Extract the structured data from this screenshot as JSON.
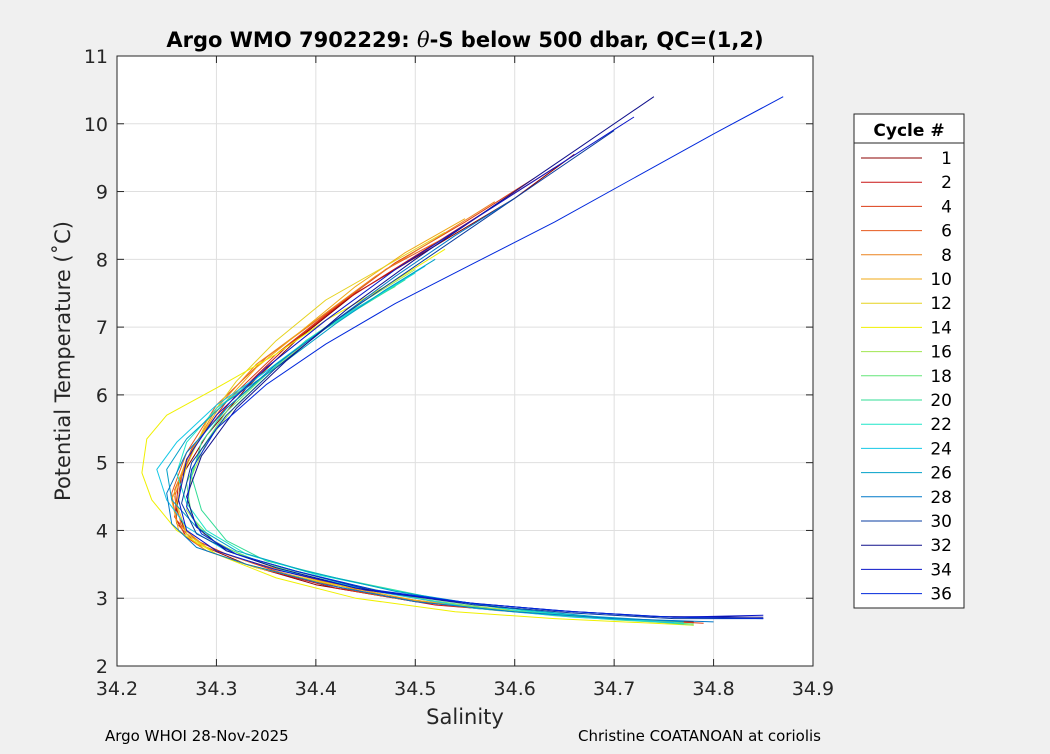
{
  "chart_data": {
    "type": "line",
    "title": "Argo WMO 7902229: θ-S below 500 dbar,  QC=(1,2)",
    "title_prefix": "Argo WMO 7902229: ",
    "title_theta": "θ",
    "title_suffix": "-S below 500 dbar,  QC=(1,2)",
    "xlabel": "Salinity",
    "ylabel": "Potential Temperature (˚C)",
    "xlim": [
      34.2,
      34.9
    ],
    "ylim": [
      2,
      11
    ],
    "xticks": [
      34.2,
      34.3,
      34.4,
      34.5,
      34.6,
      34.7,
      34.8,
      34.9
    ],
    "xtick_labels": [
      "34.2",
      "34.3",
      "34.4",
      "34.5",
      "34.6",
      "34.7",
      "34.8",
      "34.9"
    ],
    "yticks": [
      2,
      3,
      4,
      5,
      6,
      7,
      8,
      9,
      10,
      11
    ],
    "ytick_labels": [
      "2",
      "3",
      "4",
      "5",
      "6",
      "7",
      "8",
      "9",
      "10",
      "11"
    ],
    "grid": true,
    "legend": {
      "title": "Cycle #",
      "placement": "right-outside",
      "entries": [
        {
          "label": "1",
          "color": "#8b0000"
        },
        {
          "label": "2",
          "color": "#c81414"
        },
        {
          "label": "4",
          "color": "#dc3c14"
        },
        {
          "label": "6",
          "color": "#e65a1e"
        },
        {
          "label": "8",
          "color": "#ec821e"
        },
        {
          "label": "10",
          "color": "#f0aa14"
        },
        {
          "label": "12",
          "color": "#e6d21e"
        },
        {
          "label": "14",
          "color": "#f0f000"
        },
        {
          "label": "16",
          "color": "#a0e650"
        },
        {
          "label": "18",
          "color": "#64e678"
        },
        {
          "label": "20",
          "color": "#32dc96"
        },
        {
          "label": "22",
          "color": "#1ee6c8"
        },
        {
          "label": "24",
          "color": "#14c8e6"
        },
        {
          "label": "26",
          "color": "#00a0c8"
        },
        {
          "label": "28",
          "color": "#0078c8"
        },
        {
          "label": "30",
          "color": "#0a3ca0"
        },
        {
          "label": "32",
          "color": "#10108c"
        },
        {
          "label": "34",
          "color": "#0a14c8"
        },
        {
          "label": "36",
          "color": "#0028dc"
        }
      ]
    },
    "series": [
      {
        "name": "1",
        "color": "#8b0000",
        "salinity": [
          34.66,
          34.6,
          34.52,
          34.44,
          34.38,
          34.33,
          34.29,
          34.265,
          34.26,
          34.27,
          34.29,
          34.33,
          34.4,
          34.5,
          34.6,
          34.7,
          34.78
        ],
        "theta": [
          9.55,
          8.9,
          8.2,
          7.5,
          6.8,
          6.1,
          5.4,
          4.8,
          4.3,
          3.95,
          3.75,
          3.5,
          3.2,
          2.95,
          2.8,
          2.7,
          2.65
        ]
      },
      {
        "name": "2",
        "color": "#c81414",
        "salinity": [
          34.64,
          34.57,
          34.5,
          34.43,
          34.37,
          34.32,
          34.28,
          34.262,
          34.258,
          34.27,
          34.29,
          34.34,
          34.42,
          34.52,
          34.62,
          34.72,
          34.78
        ],
        "theta": [
          9.35,
          8.7,
          8.05,
          7.4,
          6.7,
          6.0,
          5.3,
          4.7,
          4.2,
          3.9,
          3.7,
          3.45,
          3.15,
          2.9,
          2.78,
          2.68,
          2.64
        ]
      },
      {
        "name": "4",
        "color": "#dc3c14",
        "salinity": [
          34.62,
          34.55,
          34.48,
          34.42,
          34.36,
          34.31,
          34.275,
          34.258,
          34.26,
          34.28,
          34.31,
          34.36,
          34.44,
          34.54,
          34.64,
          34.74,
          34.79
        ],
        "theta": [
          9.2,
          8.55,
          7.95,
          7.3,
          6.6,
          5.9,
          5.2,
          4.6,
          4.15,
          3.85,
          3.65,
          3.4,
          3.1,
          2.88,
          2.75,
          2.67,
          2.63
        ]
      },
      {
        "name": "6",
        "color": "#e65a1e",
        "salinity": [
          34.6,
          34.54,
          34.47,
          34.41,
          34.35,
          34.3,
          34.27,
          34.255,
          34.26,
          34.28,
          34.32,
          34.38,
          34.46,
          34.56,
          34.66,
          34.76
        ],
        "theta": [
          9.0,
          8.4,
          7.85,
          7.2,
          6.55,
          5.85,
          5.15,
          4.55,
          4.1,
          3.8,
          3.6,
          3.35,
          3.05,
          2.85,
          2.73,
          2.65
        ]
      },
      {
        "name": "8",
        "color": "#ec821e",
        "salinity": [
          34.58,
          34.52,
          34.46,
          34.4,
          34.34,
          34.3,
          34.272,
          34.258,
          34.265,
          34.29,
          34.33,
          34.4,
          34.48,
          34.58,
          34.68,
          34.76
        ],
        "theta": [
          8.85,
          8.3,
          7.75,
          7.1,
          6.45,
          5.8,
          5.1,
          4.5,
          4.05,
          3.75,
          3.55,
          3.28,
          3.0,
          2.82,
          2.72,
          2.65
        ]
      },
      {
        "name": "10",
        "color": "#f0aa14",
        "salinity": [
          34.55,
          34.49,
          34.44,
          34.39,
          34.34,
          34.3,
          34.27,
          34.255,
          34.262,
          34.29,
          34.33,
          34.4,
          34.5,
          34.6,
          34.7,
          34.77
        ],
        "theta": [
          8.6,
          8.1,
          7.6,
          7.0,
          6.4,
          5.75,
          5.05,
          4.45,
          4.0,
          3.7,
          3.5,
          3.25,
          2.97,
          2.8,
          2.7,
          2.64
        ]
      },
      {
        "name": "12",
        "color": "#e6d21e",
        "salinity": [
          34.53,
          34.47,
          34.41,
          34.36,
          34.32,
          34.29,
          34.27,
          34.26,
          34.27,
          34.3,
          34.34,
          34.42,
          34.52,
          34.62,
          34.72
        ],
        "theta": [
          8.4,
          7.9,
          7.4,
          6.8,
          6.2,
          5.6,
          4.95,
          4.4,
          3.95,
          3.65,
          3.45,
          3.2,
          2.95,
          2.78,
          2.68
        ]
      },
      {
        "name": "14",
        "color": "#f0f000",
        "salinity": [
          34.53,
          34.47,
          34.41,
          34.36,
          34.3,
          34.25,
          34.23,
          34.225,
          34.235,
          34.26,
          34.3,
          34.36,
          34.44,
          34.54,
          34.64,
          34.74,
          34.78
        ],
        "theta": [
          8.15,
          7.6,
          7.1,
          6.6,
          6.1,
          5.7,
          5.35,
          4.85,
          4.45,
          4.0,
          3.65,
          3.3,
          3.0,
          2.8,
          2.7,
          2.63,
          2.6
        ]
      },
      {
        "name": "16",
        "color": "#a0e650",
        "salinity": [
          34.5,
          34.45,
          34.4,
          34.36,
          34.32,
          34.29,
          34.275,
          34.27,
          34.29,
          34.33,
          34.38,
          34.45,
          34.54,
          34.64,
          34.74,
          34.78
        ],
        "theta": [
          7.85,
          7.4,
          6.9,
          6.4,
          5.85,
          5.3,
          4.8,
          4.3,
          3.9,
          3.6,
          3.4,
          3.15,
          2.9,
          2.74,
          2.65,
          2.6
        ]
      },
      {
        "name": "18",
        "color": "#64e678",
        "salinity": [
          34.48,
          34.43,
          34.39,
          34.35,
          34.31,
          34.285,
          34.27,
          34.275,
          34.3,
          34.35,
          34.42,
          34.5,
          34.6,
          34.7,
          34.78
        ],
        "theta": [
          7.6,
          7.2,
          6.8,
          6.3,
          5.75,
          5.2,
          4.7,
          4.2,
          3.8,
          3.5,
          3.25,
          3.0,
          2.8,
          2.68,
          2.62
        ]
      },
      {
        "name": "20",
        "color": "#32dc96",
        "salinity": [
          34.49,
          34.44,
          34.39,
          34.35,
          34.31,
          34.285,
          34.275,
          34.285,
          34.31,
          34.35,
          34.42,
          34.52,
          34.62,
          34.72,
          34.77
        ],
        "theta": [
          7.7,
          7.25,
          6.8,
          6.3,
          5.8,
          5.3,
          4.8,
          4.3,
          3.85,
          3.55,
          3.3,
          3.0,
          2.8,
          2.68,
          2.62
        ]
      },
      {
        "name": "22",
        "color": "#1ee6c8",
        "salinity": [
          34.5,
          34.45,
          34.4,
          34.35,
          34.3,
          34.27,
          34.26,
          34.27,
          34.29,
          34.33,
          34.4,
          34.5,
          34.6,
          34.7,
          34.77
        ],
        "theta": [
          7.8,
          7.35,
          6.9,
          6.35,
          5.8,
          5.3,
          4.85,
          4.4,
          4.0,
          3.65,
          3.35,
          3.05,
          2.82,
          2.7,
          2.63
        ]
      },
      {
        "name": "24",
        "color": "#14c8e6",
        "salinity": [
          34.51,
          34.46,
          34.41,
          34.36,
          34.3,
          34.26,
          34.24,
          34.25,
          34.27,
          34.31,
          34.37,
          34.46,
          34.56,
          34.66,
          34.76
        ],
        "theta": [
          7.9,
          7.45,
          7.0,
          6.45,
          5.85,
          5.3,
          4.9,
          4.45,
          4.05,
          3.7,
          3.4,
          3.1,
          2.85,
          2.72,
          2.64
        ]
      },
      {
        "name": "26",
        "color": "#00a0c8",
        "salinity": [
          34.52,
          34.47,
          34.42,
          34.37,
          34.31,
          34.27,
          34.25,
          34.255,
          34.28,
          34.32,
          34.39,
          34.48,
          34.58,
          34.68,
          34.77
        ],
        "theta": [
          8.0,
          7.55,
          7.05,
          6.5,
          5.9,
          5.35,
          4.9,
          4.45,
          4.05,
          3.7,
          3.4,
          3.1,
          2.87,
          2.73,
          2.65
        ]
      },
      {
        "name": "28",
        "color": "#0078c8",
        "salinity": [
          34.6,
          34.54,
          34.48,
          34.42,
          34.36,
          34.31,
          34.27,
          34.25,
          34.255,
          34.28,
          34.33,
          34.41,
          34.5,
          34.6,
          34.7,
          34.8
        ],
        "theta": [
          8.9,
          8.35,
          7.75,
          7.1,
          6.45,
          5.8,
          5.15,
          4.55,
          4.1,
          3.75,
          3.5,
          3.2,
          2.95,
          2.8,
          2.7,
          2.65
        ]
      },
      {
        "name": "30",
        "color": "#0a3ca0",
        "salinity": [
          34.7,
          34.63,
          34.56,
          34.49,
          34.42,
          34.36,
          34.31,
          34.275,
          34.265,
          34.28,
          34.32,
          34.38,
          34.46,
          34.56,
          34.66,
          34.76,
          34.85
        ],
        "theta": [
          9.9,
          9.2,
          8.5,
          7.8,
          7.1,
          6.4,
          5.7,
          5.0,
          4.4,
          3.95,
          3.65,
          3.4,
          3.1,
          2.9,
          2.78,
          2.7,
          2.7
        ]
      },
      {
        "name": "32",
        "color": "#10108c",
        "salinity": [
          34.74,
          34.66,
          34.58,
          34.5,
          34.43,
          34.37,
          34.32,
          34.285,
          34.27,
          34.28,
          34.31,
          34.36,
          34.44,
          34.54,
          34.64,
          34.74,
          34.85
        ],
        "theta": [
          10.4,
          9.6,
          8.8,
          8.0,
          7.25,
          6.5,
          5.8,
          5.1,
          4.5,
          4.05,
          3.7,
          3.45,
          3.15,
          2.95,
          2.82,
          2.73,
          2.72
        ]
      },
      {
        "name": "34",
        "color": "#0a14c8",
        "salinity": [
          34.72,
          34.64,
          34.56,
          34.48,
          34.41,
          34.35,
          34.3,
          34.27,
          34.262,
          34.27,
          34.3,
          34.36,
          34.45,
          34.56,
          34.66,
          34.76,
          34.85
        ],
        "theta": [
          10.1,
          9.35,
          8.6,
          7.85,
          7.1,
          6.4,
          5.7,
          5.05,
          4.45,
          4.0,
          3.7,
          3.42,
          3.12,
          2.92,
          2.8,
          2.72,
          2.75
        ]
      },
      {
        "name": "36",
        "color": "#0028dc",
        "salinity": [
          34.87,
          34.8,
          34.72,
          34.64,
          34.56,
          34.48,
          34.41,
          34.35,
          34.3,
          34.275,
          34.27,
          34.285,
          34.32,
          34.38,
          34.46,
          34.56,
          34.66,
          34.76,
          34.85
        ],
        "theta": [
          10.4,
          9.85,
          9.2,
          8.55,
          7.95,
          7.35,
          6.75,
          6.15,
          5.5,
          4.9,
          4.35,
          3.95,
          3.65,
          3.4,
          3.12,
          2.92,
          2.8,
          2.72,
          2.7
        ]
      }
    ]
  },
  "footer": {
    "left": "Argo WHOI 28-Nov-2025",
    "right": "Christine COATANOAN at coriolis"
  }
}
